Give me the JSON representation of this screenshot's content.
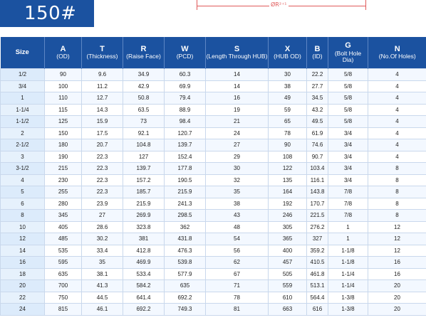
{
  "badge": {
    "label": "150#"
  },
  "drawing": {
    "dimension_label": "ØR²⁺¹"
  },
  "table": {
    "headers": [
      {
        "main": "Size",
        "sub": ""
      },
      {
        "main": "A",
        "sub": "(OD)"
      },
      {
        "main": "T",
        "sub": "(Thickness)"
      },
      {
        "main": "R",
        "sub": "(Raise Face)"
      },
      {
        "main": "W",
        "sub": "(PCD)"
      },
      {
        "main": "S",
        "sub": "(Length Through HUB)"
      },
      {
        "main": "X",
        "sub": "(HUB OD)"
      },
      {
        "main": "B",
        "sub": "(ID)"
      },
      {
        "main": "G",
        "sub": "(Bolt Hole Dia)"
      },
      {
        "main": "N",
        "sub": "(No.Of Holes)"
      }
    ],
    "rows": [
      [
        "1/2",
        "90",
        "9.6",
        "34.9",
        "60.3",
        "14",
        "30",
        "22.2",
        "5/8",
        "4"
      ],
      [
        "3/4",
        "100",
        "11.2",
        "42.9",
        "69.9",
        "14",
        "38",
        "27.7",
        "5/8",
        "4"
      ],
      [
        "1",
        "110",
        "12.7",
        "50.8",
        "79.4",
        "16",
        "49",
        "34.5",
        "5/8",
        "4"
      ],
      [
        "1-1/4",
        "115",
        "14.3",
        "63.5",
        "88.9",
        "19",
        "59",
        "43.2",
        "5/8",
        "4"
      ],
      [
        "1-1/2",
        "125",
        "15.9",
        "73",
        "98.4",
        "21",
        "65",
        "49.5",
        "5/8",
        "4"
      ],
      [
        "2",
        "150",
        "17.5",
        "92.1",
        "120.7",
        "24",
        "78",
        "61.9",
        "3/4",
        "4"
      ],
      [
        "2-1/2",
        "180",
        "20.7",
        "104.8",
        "139.7",
        "27",
        "90",
        "74.6",
        "3/4",
        "4"
      ],
      [
        "3",
        "190",
        "22.3",
        "127",
        "152.4",
        "29",
        "108",
        "90.7",
        "3/4",
        "4"
      ],
      [
        "3-1/2",
        "215",
        "22.3",
        "139.7",
        "177.8",
        "30",
        "122",
        "103.4",
        "3/4",
        "8"
      ],
      [
        "4",
        "230",
        "22.3",
        "157.2",
        "190.5",
        "32",
        "135",
        "116.1",
        "3/4",
        "8"
      ],
      [
        "5",
        "255",
        "22.3",
        "185.7",
        "215.9",
        "35",
        "164",
        "143.8",
        "7/8",
        "8"
      ],
      [
        "6",
        "280",
        "23.9",
        "215.9",
        "241.3",
        "38",
        "192",
        "170.7",
        "7/8",
        "8"
      ],
      [
        "8",
        "345",
        "27",
        "269.9",
        "298.5",
        "43",
        "246",
        "221.5",
        "7/8",
        "8"
      ],
      [
        "10",
        "405",
        "28.6",
        "323.8",
        "362",
        "48",
        "305",
        "276.2",
        "1",
        "12"
      ],
      [
        "12",
        "485",
        "30.2",
        "381",
        "431.8",
        "54",
        "365",
        "327",
        "1",
        "12"
      ],
      [
        "14",
        "535",
        "33.4",
        "412.8",
        "476.3",
        "56",
        "400",
        "359.2",
        "1-1/8",
        "12"
      ],
      [
        "16",
        "595",
        "35",
        "469.9",
        "539.8",
        "62",
        "457",
        "410.5",
        "1-1/8",
        "16"
      ],
      [
        "18",
        "635",
        "38.1",
        "533.4",
        "577.9",
        "67",
        "505",
        "461.8",
        "1-1/4",
        "16"
      ],
      [
        "20",
        "700",
        "41.3",
        "584.2",
        "635",
        "71",
        "559",
        "513.1",
        "1-1/4",
        "20"
      ],
      [
        "22",
        "750",
        "44.5",
        "641.4",
        "692.2",
        "78",
        "610",
        "564.4",
        "1-3/8",
        "20"
      ],
      [
        "24",
        "815",
        "46.1",
        "692.2",
        "749.3",
        "81",
        "663",
        "616",
        "1-3/8",
        "20"
      ]
    ]
  }
}
